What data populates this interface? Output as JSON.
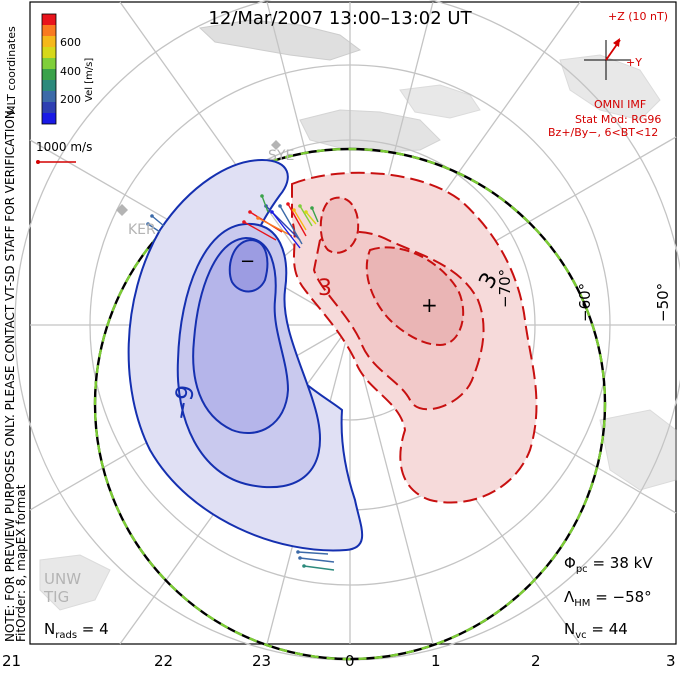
{
  "title": "12/Mar/2007 13:00–13:02 UT",
  "colorbar": {
    "label": "Vel [m/s]",
    "ticks": [
      "600",
      "400",
      "200"
    ],
    "colors": [
      "#e8141c",
      "#f97a20",
      "#f5b81a",
      "#d6d81a",
      "#7fcf3a",
      "#3aa24a",
      "#2c8a7c",
      "#3c6aa8",
      "#2e3fb2",
      "#1a1ae6"
    ]
  },
  "coordinates_label": "MLT coordinates",
  "vector_scale": "1000 m/s",
  "imf": {
    "z_label": "+Z (10 nT)",
    "y_label": "+Y",
    "source": "OMNI IMF",
    "model": "Stat Mod: RG96",
    "condition": "Bz+/By−, 6<BT<12"
  },
  "note": "NOTE: FOR PREVIEW PURPOSES ONLY. PLEASE CONTACT VT-SD STAFF FOR VERIFICATION.",
  "fit_order": "FitOrder: 8, mapEX format",
  "stats": {
    "phi_pc": "38 kV",
    "lambda_hm": "−58°",
    "n_vc": "44",
    "n_rads": "4"
  },
  "mlt_ticks": [
    "21",
    "22",
    "23",
    "0",
    "1",
    "2",
    "3"
  ],
  "lat_labels": [
    "−50°",
    "−60°",
    "−70°"
  ],
  "station_labels": [
    "KER",
    "SYE",
    "UNW",
    "TIG"
  ],
  "contours": {
    "negative_label": "−9",
    "positive_label": "3",
    "positive_label_2": "3",
    "min_marker": "−",
    "max_marker": "+"
  },
  "colors": {
    "negative_fill": "#c9c9ee",
    "negative_line": "#1530b0",
    "positive_fill": "#f2c9c9",
    "positive_line": "#c81010",
    "grid": "#c4c4c4",
    "land": "#d2d2d2",
    "boundary_green": "#7ccd34"
  }
}
